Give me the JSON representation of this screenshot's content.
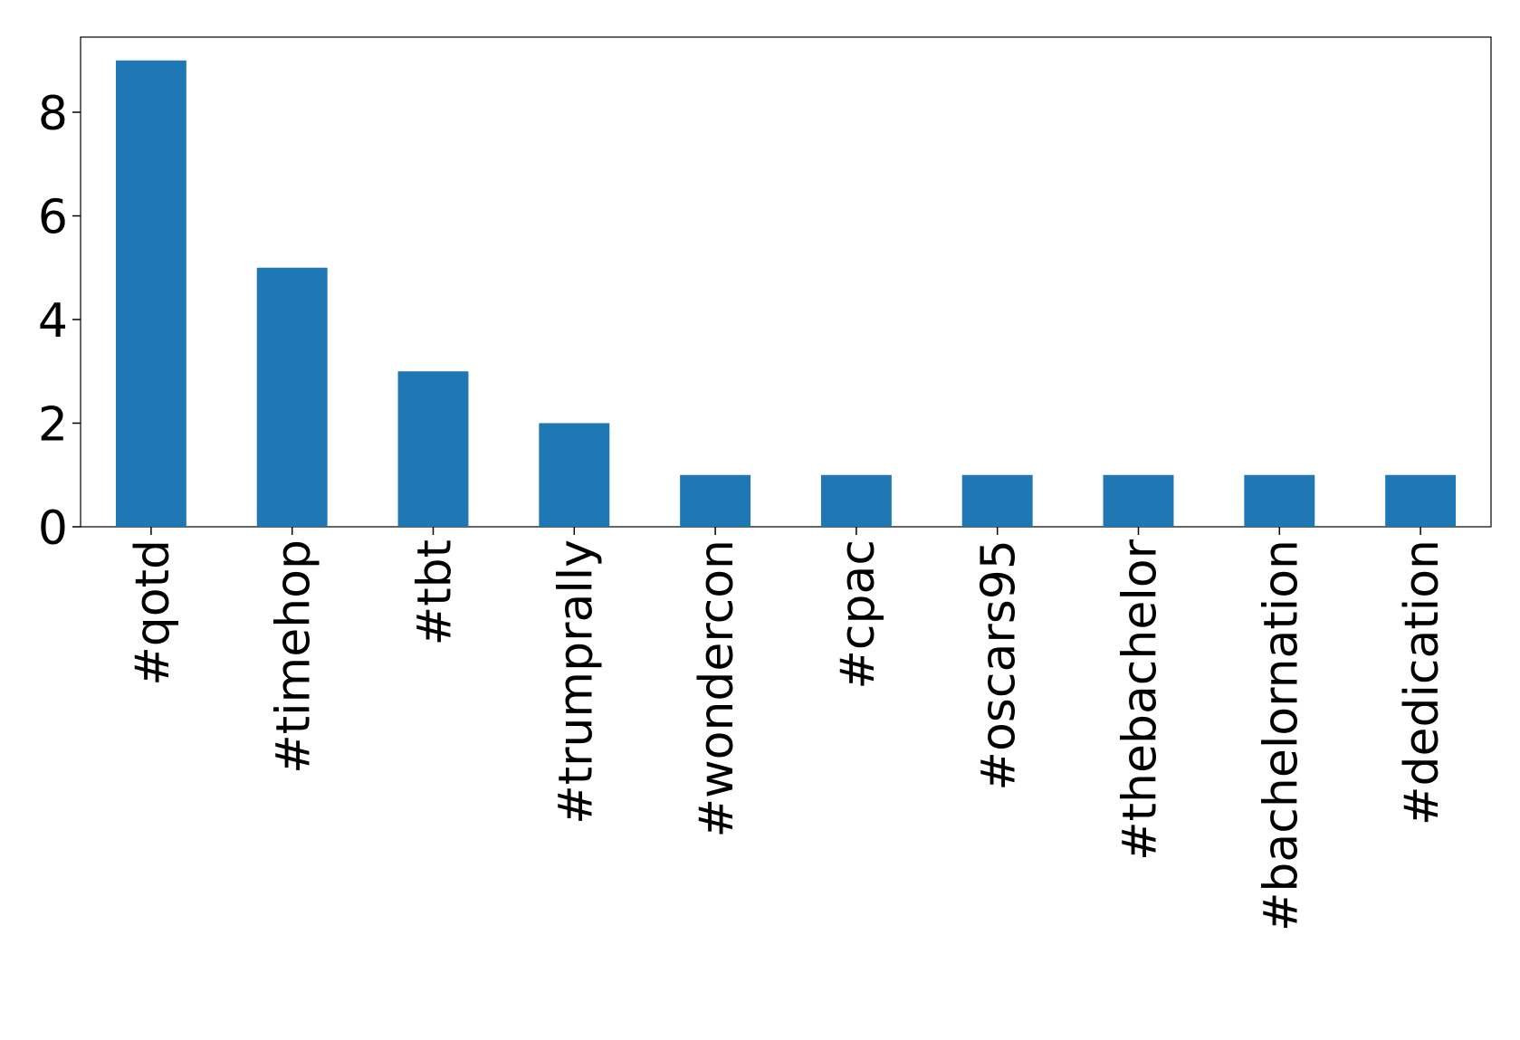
{
  "chart_data": {
    "type": "bar",
    "categories": [
      "#qotd",
      "#timehop",
      "#tbt",
      "#trumprally",
      "#wondercon",
      "#cpac",
      "#oscars95",
      "#thebachelor",
      "#bachelornation",
      "#dedication"
    ],
    "values": [
      9,
      5,
      3,
      2,
      1,
      1,
      1,
      1,
      1,
      1
    ],
    "color": "#1f77b4",
    "ylim": [
      0,
      9.45
    ],
    "yticks": [
      0,
      2,
      4,
      6,
      8
    ],
    "grid": false
  }
}
